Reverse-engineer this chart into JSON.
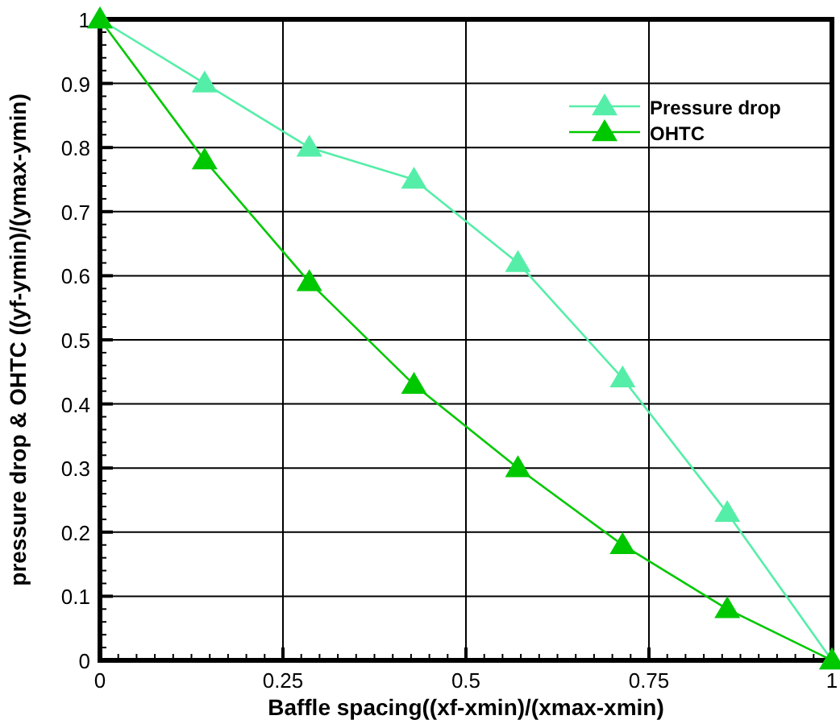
{
  "chart_data": {
    "type": "line",
    "xlabel": "Baffle spacing((xf-xmin)/(xmax-xmin)",
    "ylabel": "pressure drop & OHTC ((yf-ymin)/(ymax-ymin)",
    "x": [
      0,
      0.143,
      0.286,
      0.429,
      0.571,
      0.714,
      0.857,
      1
    ],
    "series": [
      {
        "name": "Pressure drop",
        "color": "#55eea8",
        "values": [
          1,
          0.9,
          0.8,
          0.75,
          0.62,
          0.44,
          0.23,
          0
        ]
      },
      {
        "name": "OHTC",
        "color": "#00c800",
        "values": [
          1,
          0.78,
          0.59,
          0.43,
          0.3,
          0.18,
          0.08,
          0
        ]
      }
    ],
    "xlim": [
      0,
      1
    ],
    "xticks": [
      0,
      0.25,
      0.5,
      0.75,
      1
    ],
    "ylim": [
      0,
      1
    ],
    "yticks": [
      0,
      0.1,
      0.2,
      0.3,
      0.4,
      0.5,
      0.6,
      0.7,
      0.8,
      0.9,
      1
    ],
    "grid": true,
    "legend": "top right",
    "marker": "triangle",
    "line_style": "solid"
  }
}
